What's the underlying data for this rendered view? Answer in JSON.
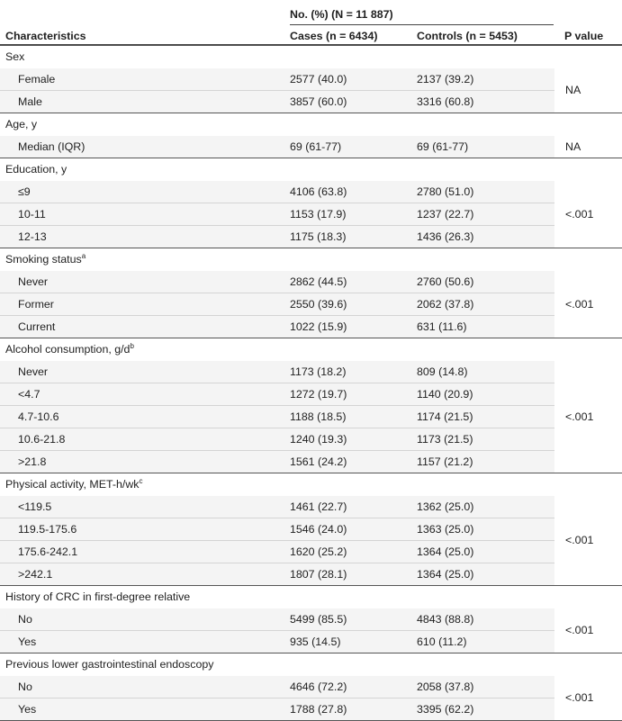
{
  "header": {
    "span_label": "No. (%) (N = 11 887)",
    "col_characteristics": "Characteristics",
    "col_cases": "Cases (n = 6434)",
    "col_controls": "Controls (n = 5453)",
    "col_pvalue": "P value"
  },
  "sections": [
    {
      "title": "Sex",
      "sup": "",
      "p": "NA",
      "rows": [
        {
          "label": "Female",
          "cases": "2577 (40.0)",
          "controls": "2137 (39.2)"
        },
        {
          "label": "Male",
          "cases": "3857 (60.0)",
          "controls": "3316 (60.8)"
        }
      ]
    },
    {
      "title": "Age, y",
      "sup": "",
      "p": "NA",
      "rows": [
        {
          "label": "Median (IQR)",
          "cases": "69 (61-77)",
          "controls": "69 (61-77)"
        }
      ]
    },
    {
      "title": "Education, y",
      "sup": "",
      "p": "<.001",
      "rows": [
        {
          "label": "≤9",
          "cases": "4106 (63.8)",
          "controls": "2780 (51.0)"
        },
        {
          "label": "10-11",
          "cases": "1153 (17.9)",
          "controls": "1237 (22.7)"
        },
        {
          "label": "12-13",
          "cases": "1175 (18.3)",
          "controls": "1436 (26.3)"
        }
      ]
    },
    {
      "title": "Smoking status",
      "sup": "a",
      "p": "<.001",
      "rows": [
        {
          "label": "Never",
          "cases": "2862 (44.5)",
          "controls": "2760 (50.6)"
        },
        {
          "label": "Former",
          "cases": "2550 (39.6)",
          "controls": "2062 (37.8)"
        },
        {
          "label": "Current",
          "cases": "1022 (15.9)",
          "controls": "631 (11.6)"
        }
      ]
    },
    {
      "title": "Alcohol consumption, g/d",
      "sup": "b",
      "p": "<.001",
      "rows": [
        {
          "label": "Never",
          "cases": "1173 (18.2)",
          "controls": "809 (14.8)"
        },
        {
          "label": "<4.7",
          "cases": "1272 (19.7)",
          "controls": "1140 (20.9)"
        },
        {
          "label": "4.7-10.6",
          "cases": "1188 (18.5)",
          "controls": "1174 (21.5)"
        },
        {
          "label": "10.6-21.8",
          "cases": "1240 (19.3)",
          "controls": "1173 (21.5)"
        },
        {
          "label": ">21.8",
          "cases": "1561 (24.2)",
          "controls": "1157 (21.2)"
        }
      ]
    },
    {
      "title": "Physical activity, MET-h/wk",
      "sup": "c",
      "p": "<.001",
      "rows": [
        {
          "label": "<119.5",
          "cases": "1461 (22.7)",
          "controls": "1362 (25.0)"
        },
        {
          "label": "119.5-175.6",
          "cases": "1546 (24.0)",
          "controls": "1363 (25.0)"
        },
        {
          "label": "175.6-242.1",
          "cases": "1620 (25.2)",
          "controls": "1364 (25.0)"
        },
        {
          "label": ">242.1",
          "cases": "1807 (28.1)",
          "controls": "1364 (25.0)"
        }
      ]
    },
    {
      "title": "History of CRC in first-degree relative",
      "sup": "",
      "p": "<.001",
      "rows": [
        {
          "label": "No",
          "cases": "5499 (85.5)",
          "controls": "4843 (88.8)"
        },
        {
          "label": "Yes",
          "cases": "935 (14.5)",
          "controls": "610 (11.2)"
        }
      ]
    },
    {
      "title": "Previous lower gastrointestinal endoscopy",
      "sup": "",
      "p": "<.001",
      "rows": [
        {
          "label": "No",
          "cases": "4646 (72.2)",
          "controls": "2058 (37.8)"
        },
        {
          "label": "Yes",
          "cases": "1788 (27.8)",
          "controls": "3395 (62.2)"
        }
      ]
    }
  ]
}
